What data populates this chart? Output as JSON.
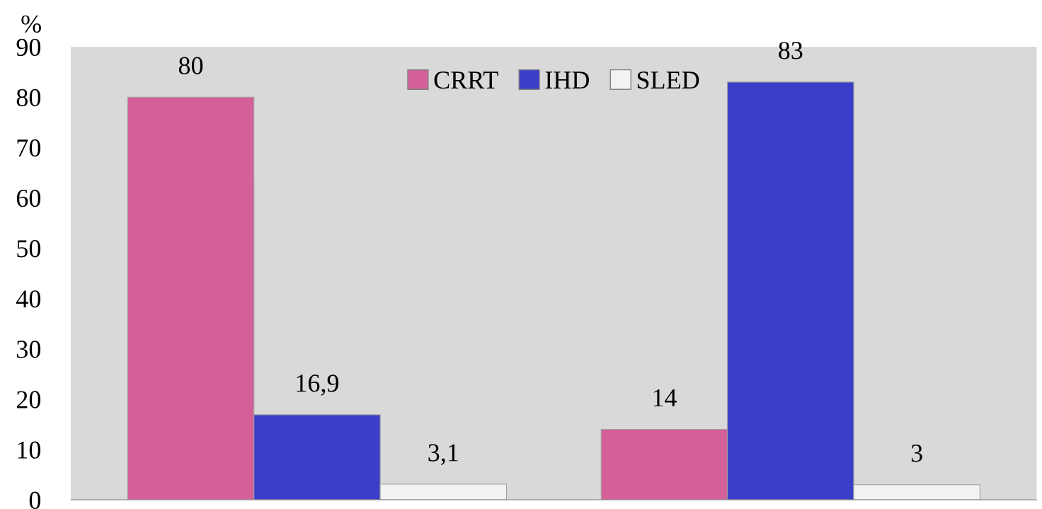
{
  "chart_data": {
    "type": "bar",
    "ylabel": "%",
    "categories": [
      null,
      null
    ],
    "series": [
      {
        "name": "CRRT",
        "color": "#d4609a",
        "values": [
          80,
          14
        ],
        "value_labels": [
          "80",
          "14"
        ]
      },
      {
        "name": "IHD",
        "color": "#3a3ec8",
        "values": [
          16.9,
          83
        ],
        "value_labels": [
          "16,9",
          "83"
        ]
      },
      {
        "name": "SLED",
        "color": "#f2f2f2",
        "values": [
          3.1,
          3
        ],
        "value_labels": [
          "3,1",
          "3"
        ]
      }
    ],
    "ylim": [
      0,
      90
    ],
    "yticks": [
      0,
      10,
      20,
      30,
      40,
      50,
      60,
      70,
      80,
      90
    ],
    "grid": false,
    "legend": "top"
  }
}
